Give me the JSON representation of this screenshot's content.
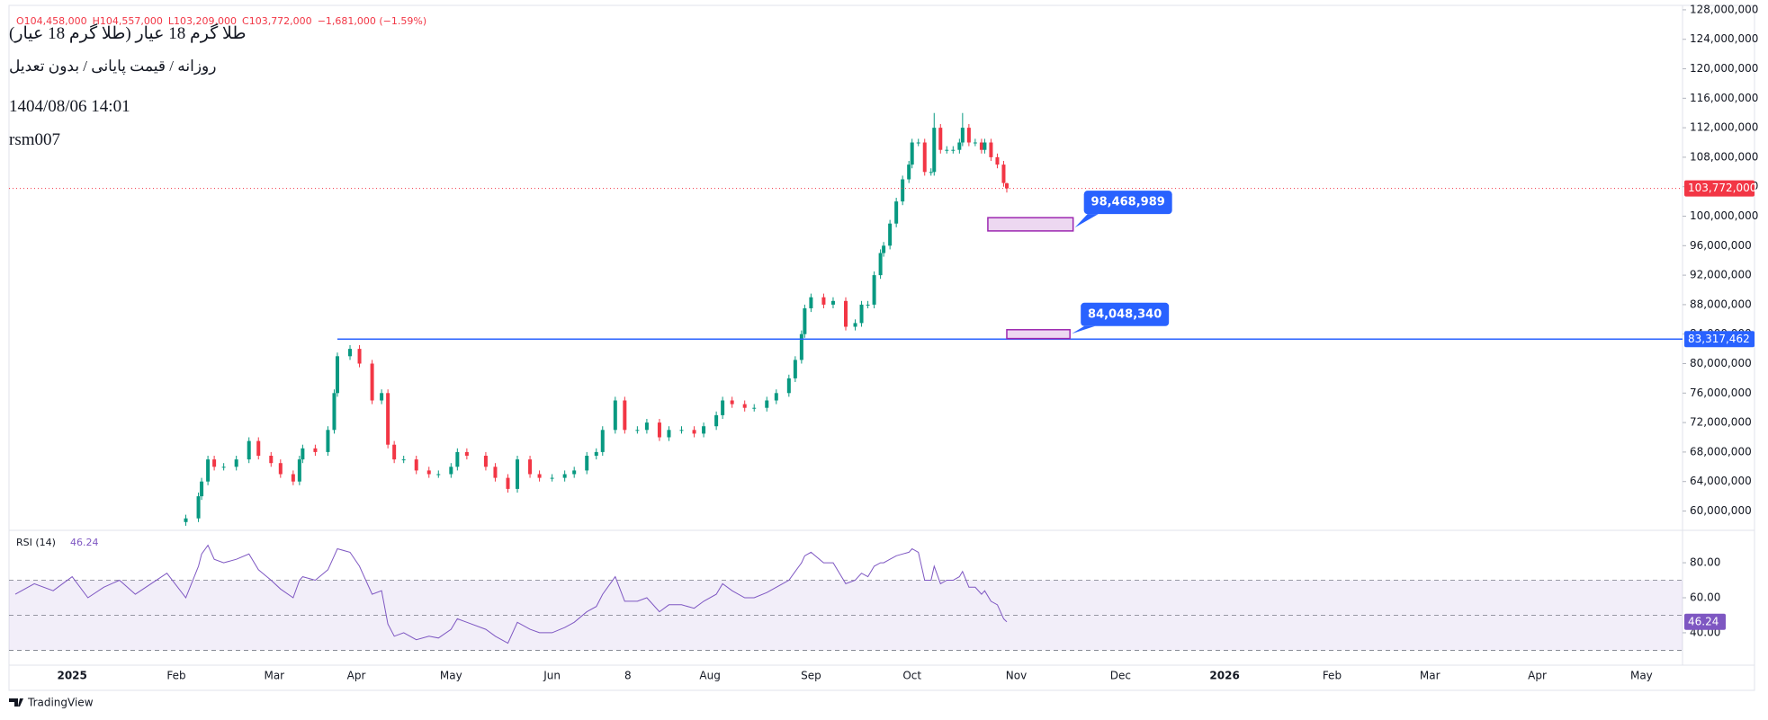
{
  "header": {
    "ohlc": [
      "O104,458,000",
      "H104,557,000",
      "L103,209,000",
      "C103,772,000",
      "−1,681,000 (−1.59%)"
    ],
    "title": "طلا گرم 18 عیار (طلا گرم 18 عیار)",
    "subtitle": "روزانه / قیمت پایانی / بدون تعدیل",
    "datetime": "1404/08/06 14:01",
    "author": "rsm007"
  },
  "chart_data": [
    {
      "type": "candlestick",
      "x": [
        36,
        40,
        41,
        43,
        45,
        48,
        52,
        56,
        59,
        63,
        66,
        70,
        72,
        73,
        77,
        81,
        83,
        84,
        88,
        91,
        95,
        98,
        100,
        102,
        105,
        109,
        113,
        116,
        120,
        122,
        125,
        131,
        134,
        138,
        141,
        145,
        148,
        152,
        156,
        159,
        163,
        166,
        168,
        172,
        175,
        179,
        182,
        186,
        189,
        193,
        197,
        200,
        204,
        206,
        209,
        213,
        216,
        220,
        223,
        227,
        229,
        231,
        232,
        234,
        238,
        241,
        245,
        248,
        250,
        252,
        254,
        256,
        257,
        259,
        261,
        263,
        265,
        266,
        268,
        270,
        272,
        273,
        275,
        277,
        279,
        281,
        282,
        284,
        286,
        288,
        289,
        291,
        293,
        295,
        296
      ],
      "open": [
        58500000,
        59000000,
        62000000,
        64000000,
        67000000,
        66000000,
        66000000,
        67000000,
        69500000,
        67500000,
        66500000,
        65000000,
        64000000,
        67000000,
        68500000,
        68000000,
        71000000,
        76000000,
        81000000,
        82000000,
        80000000,
        75000000,
        76000000,
        69000000,
        67000000,
        67000000,
        65500000,
        65000000,
        65000000,
        66000000,
        68000000,
        67500000,
        66000000,
        64500000,
        63000000,
        67000000,
        65000000,
        64500000,
        64500000,
        65000000,
        65500000,
        67500000,
        68000000,
        71000000,
        75000000,
        71000000,
        71000000,
        72000000,
        70000000,
        71000000,
        71000000,
        70500000,
        71500000,
        73000000,
        75000000,
        74500000,
        74000000,
        74000000,
        75000000,
        76000000,
        78000000,
        80500000,
        84000000,
        87500000,
        89000000,
        88000000,
        88500000,
        85000000,
        85500000,
        88000000,
        88000000,
        92000000,
        95000000,
        96000000,
        99000000,
        102000000,
        105000000,
        107000000,
        110000000,
        110000000,
        106000000,
        106000000,
        112000000,
        109000000,
        109000000,
        109000000,
        110000000,
        112000000,
        110000000,
        110000000,
        109000000,
        110000000,
        108000000,
        107000000,
        104458000
      ],
      "high": [
        59500000,
        62500000,
        64500000,
        67500000,
        67500000,
        66500000,
        67500000,
        70000000,
        70000000,
        68000000,
        67000000,
        65500000,
        67500000,
        69000000,
        69000000,
        71500000,
        76500000,
        81500000,
        82500000,
        82500000,
        80500000,
        76500000,
        76500000,
        69500000,
        67500000,
        67500000,
        66000000,
        65500000,
        66500000,
        68500000,
        68500000,
        68000000,
        66500000,
        65000000,
        67500000,
        67500000,
        65500000,
        65000000,
        65500000,
        66000000,
        68000000,
        68500000,
        71500000,
        75500000,
        75500000,
        71500000,
        72500000,
        72500000,
        71500000,
        71500000,
        71500000,
        72000000,
        73500000,
        75500000,
        75500000,
        75000000,
        74500000,
        75500000,
        76500000,
        78500000,
        81000000,
        84500000,
        88000000,
        89500000,
        89500000,
        89000000,
        89000000,
        86000000,
        88500000,
        88500000,
        92500000,
        95500000,
        96500000,
        99500000,
        102500000,
        105500000,
        107500000,
        110500000,
        110500000,
        110500000,
        106500000,
        114000000,
        112500000,
        109500000,
        109500000,
        110500000,
        114000000,
        112500000,
        110500000,
        110500000,
        110500000,
        110500000,
        108500000,
        107500000,
        104557000
      ],
      "low": [
        58000000,
        58500000,
        61500000,
        63500000,
        65500000,
        65500000,
        65500000,
        66500000,
        67000000,
        66000000,
        64500000,
        63500000,
        63500000,
        66500000,
        67500000,
        67500000,
        70500000,
        75500000,
        80500000,
        79500000,
        74500000,
        74500000,
        68500000,
        66500000,
        66500000,
        65000000,
        64500000,
        64500000,
        64500000,
        65500000,
        67000000,
        65500000,
        64000000,
        62500000,
        62500000,
        64500000,
        64000000,
        64000000,
        64000000,
        64500000,
        65000000,
        67000000,
        67500000,
        70500000,
        70500000,
        70500000,
        70500000,
        69500000,
        69500000,
        70500000,
        70000000,
        70000000,
        71000000,
        72500000,
        74000000,
        73500000,
        73500000,
        73500000,
        74500000,
        75500000,
        77500000,
        80000000,
        83500000,
        87000000,
        87500000,
        87500000,
        84500000,
        84500000,
        85000000,
        87500000,
        87500000,
        91500000,
        94500000,
        95500000,
        98500000,
        101500000,
        104500000,
        106500000,
        109500000,
        105500000,
        105500000,
        105500000,
        108500000,
        108500000,
        108500000,
        108500000,
        109500000,
        109500000,
        109500000,
        108500000,
        108500000,
        107500000,
        106500000,
        104000000,
        103209000
      ],
      "close": [
        59000000,
        62000000,
        64000000,
        67000000,
        66000000,
        66000000,
        67000000,
        69500000,
        67500000,
        66500000,
        65000000,
        64000000,
        67000000,
        68500000,
        68000000,
        71000000,
        76000000,
        81000000,
        82000000,
        80000000,
        75000000,
        76000000,
        69000000,
        67000000,
        67000000,
        65500000,
        65000000,
        65000000,
        66000000,
        68000000,
        67500000,
        66000000,
        64500000,
        63000000,
        67000000,
        65000000,
        64500000,
        64500000,
        65000000,
        65500000,
        67500000,
        68000000,
        71000000,
        75000000,
        71000000,
        71000000,
        72000000,
        70000000,
        71000000,
        71000000,
        70500000,
        71500000,
        73000000,
        75000000,
        74500000,
        74000000,
        74000000,
        75000000,
        76000000,
        78000000,
        80500000,
        84000000,
        87500000,
        89000000,
        88000000,
        88500000,
        85000000,
        85500000,
        88000000,
        88000000,
        92000000,
        95000000,
        96000000,
        99000000,
        102000000,
        105000000,
        107000000,
        110000000,
        110000000,
        106000000,
        106000000,
        112000000,
        109000000,
        109000000,
        109000000,
        110000000,
        112000000,
        110000000,
        110000000,
        109000000,
        110000000,
        108000000,
        107000000,
        104500000,
        103772000
      ],
      "up_color": "#089981",
      "down_color": "#f23645",
      "xlim": [
        -20,
        510
      ],
      "xticks": [
        {
          "value": 0,
          "label": "2025"
        },
        {
          "value": 33,
          "label": "Feb"
        },
        {
          "value": 64,
          "label": "Mar"
        },
        {
          "value": 90,
          "label": "Apr"
        },
        {
          "value": 120,
          "label": "May"
        },
        {
          "value": 152,
          "label": "Jun"
        },
        {
          "value": 176,
          "label": "8"
        },
        {
          "value": 202,
          "label": "Aug"
        },
        {
          "value": 234,
          "label": "Sep"
        },
        {
          "value": 266,
          "label": "Oct"
        },
        {
          "value": 299,
          "label": "Nov"
        },
        {
          "value": 332,
          "label": "Dec"
        },
        {
          "value": 365,
          "label": "2026"
        },
        {
          "value": 399,
          "label": "Feb"
        },
        {
          "value": 430,
          "label": "Mar"
        },
        {
          "value": 464,
          "label": "Apr"
        },
        {
          "value": 497,
          "label": "May"
        }
      ],
      "ylim": [
        57500000,
        128600000
      ],
      "yticks": [
        {
          "value": 60000000,
          "label": "60,000,000"
        },
        {
          "value": 64000000,
          "label": "64,000,000"
        },
        {
          "value": 68000000,
          "label": "68,000,000"
        },
        {
          "value": 72000000,
          "label": "72,000,000"
        },
        {
          "value": 76000000,
          "label": "76,000,000"
        },
        {
          "value": 80000000,
          "label": "80,000,000"
        },
        {
          "value": 84000000,
          "label": "84,000,000"
        },
        {
          "value": 88000000,
          "label": "88,000,000"
        },
        {
          "value": 92000000,
          "label": "92,000,000"
        },
        {
          "value": 96000000,
          "label": "96,000,000"
        },
        {
          "value": 100000000,
          "label": "100,000,000"
        },
        {
          "value": 104000000,
          "label": "104,000,000"
        },
        {
          "value": 108000000,
          "label": "108,000,000"
        },
        {
          "value": 112000000,
          "label": "112,000,000"
        },
        {
          "value": 116000000,
          "label": "116,000,000"
        },
        {
          "value": 120000000,
          "label": "120,000,000"
        },
        {
          "value": 124000000,
          "label": "124,000,000"
        },
        {
          "value": 128000000,
          "label": "128,000,000"
        }
      ],
      "grid": false,
      "last_price": {
        "value": 103772000,
        "label": "103,772,000",
        "color": "#f23645"
      },
      "price_line": {
        "value": 83317462,
        "label": "83,317,462",
        "x_start": 84,
        "color": "#2962ff"
      },
      "zones": [
        {
          "value": 98468989,
          "label": "98,468,989",
          "x": [
            290,
            317
          ],
          "y": [
            98000000,
            99800000
          ]
        },
        {
          "value": 84048340,
          "label": "84,048,340",
          "x": [
            296,
            316
          ],
          "y": [
            83400000,
            84600000
          ]
        }
      ]
    },
    {
      "type": "line",
      "title": "RSI (14)",
      "color": "#7e57c2",
      "x": [
        -18,
        -12,
        -6,
        0,
        5,
        10,
        15,
        20,
        25,
        30,
        36,
        40,
        41,
        43,
        45,
        48,
        52,
        56,
        59,
        63,
        66,
        70,
        72,
        73,
        77,
        81,
        83,
        84,
        88,
        91,
        95,
        98,
        100,
        102,
        105,
        109,
        113,
        116,
        120,
        122,
        125,
        131,
        134,
        138,
        141,
        145,
        148,
        152,
        156,
        159,
        163,
        166,
        168,
        172,
        175,
        179,
        182,
        186,
        189,
        193,
        197,
        200,
        204,
        206,
        209,
        213,
        216,
        220,
        223,
        227,
        229,
        231,
        232,
        234,
        238,
        241,
        245,
        248,
        250,
        252,
        254,
        256,
        257,
        259,
        261,
        263,
        265,
        266,
        268,
        270,
        272,
        273,
        275,
        277,
        279,
        281,
        282,
        284,
        286,
        288,
        289,
        291,
        293,
        295,
        296
      ],
      "values": [
        62,
        68,
        64,
        72,
        60,
        66,
        70,
        62,
        68,
        74,
        60,
        78,
        85,
        90,
        82,
        80,
        82,
        85,
        76,
        70,
        65,
        60,
        70,
        72,
        70,
        76,
        84,
        88,
        86,
        78,
        62,
        64,
        45,
        38,
        40,
        36,
        38,
        37,
        42,
        48,
        46,
        42,
        38,
        34,
        46,
        42,
        40,
        40,
        43,
        46,
        52,
        55,
        62,
        72,
        58,
        58,
        60,
        52,
        56,
        56,
        54,
        58,
        62,
        68,
        64,
        60,
        60,
        63,
        66,
        70,
        75,
        80,
        84,
        86,
        80,
        80,
        68,
        70,
        74,
        72,
        78,
        80,
        80,
        82,
        84,
        85,
        86,
        88,
        86,
        70,
        70,
        78,
        68,
        70,
        70,
        72,
        75,
        66,
        66,
        62,
        64,
        58,
        56,
        48,
        46.24
      ],
      "ylim": [
        22,
        98
      ],
      "yticks": [
        {
          "value": 80,
          "label": "80.00"
        },
        {
          "value": 60,
          "label": "60.00"
        },
        {
          "value": 40,
          "label": "40.00"
        }
      ],
      "levels": [
        70,
        50,
        30
      ],
      "band": [
        30,
        70
      ]
    }
  ],
  "footer": {
    "brand": "TradingView"
  }
}
